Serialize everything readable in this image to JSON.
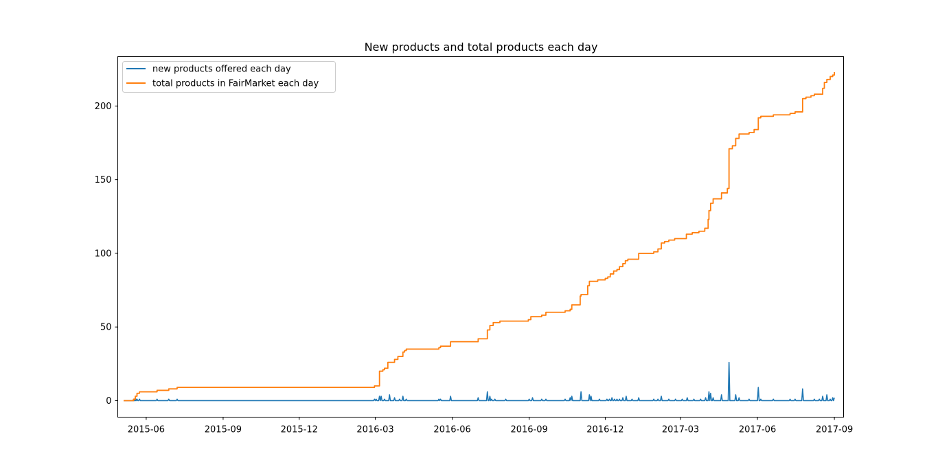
{
  "chart_data": {
    "type": "line",
    "title": "New products and total products each day",
    "xlabel": "",
    "ylabel": "",
    "x_range": [
      "2015-04-28",
      "2017-09-12"
    ],
    "ylim": [
      -11.2,
      233.5
    ],
    "x_ticks": [
      {
        "date": "2015-06-01",
        "label": "2015-06"
      },
      {
        "date": "2015-09-01",
        "label": "2015-09"
      },
      {
        "date": "2015-12-01",
        "label": "2015-12"
      },
      {
        "date": "2016-03-01",
        "label": "2016-03"
      },
      {
        "date": "2016-06-01",
        "label": "2016-06"
      },
      {
        "date": "2016-09-01",
        "label": "2016-09"
      },
      {
        "date": "2016-12-01",
        "label": "2016-12"
      },
      {
        "date": "2017-03-01",
        "label": "2017-03"
      },
      {
        "date": "2017-06-01",
        "label": "2017-06"
      },
      {
        "date": "2017-09-01",
        "label": "2017-09"
      }
    ],
    "y_ticks": [
      0,
      50,
      100,
      150,
      200
    ],
    "legend_position": "top-left",
    "series": [
      {
        "name": "new products offered each day",
        "color": "#1f77b4",
        "render": "spikes",
        "events": [
          [
            "2015-05-17",
            1
          ],
          [
            "2015-05-18",
            1
          ],
          [
            "2015-05-19",
            2
          ],
          [
            "2015-05-21",
            1
          ],
          [
            "2015-05-24",
            1
          ],
          [
            "2015-06-14",
            1
          ],
          [
            "2015-06-28",
            1
          ],
          [
            "2015-07-08",
            1
          ],
          [
            "2016-02-29",
            1
          ],
          [
            "2016-03-02",
            1
          ],
          [
            "2016-03-06",
            3
          ],
          [
            "2016-03-08",
            3
          ],
          [
            "2016-03-12",
            1
          ],
          [
            "2016-03-18",
            4
          ],
          [
            "2016-03-24",
            2
          ],
          [
            "2016-03-30",
            1
          ],
          [
            "2016-04-03",
            3
          ],
          [
            "2016-04-07",
            1
          ],
          [
            "2016-05-16",
            1
          ],
          [
            "2016-05-18",
            1
          ],
          [
            "2016-05-30",
            3
          ],
          [
            "2016-07-02",
            2
          ],
          [
            "2016-07-13",
            6
          ],
          [
            "2016-07-16",
            3
          ],
          [
            "2016-07-18",
            1
          ],
          [
            "2016-07-22",
            1
          ],
          [
            "2016-08-04",
            1
          ],
          [
            "2016-09-01",
            1
          ],
          [
            "2016-09-05",
            2
          ],
          [
            "2016-09-16",
            1
          ],
          [
            "2016-09-21",
            1
          ],
          [
            "2016-10-14",
            1
          ],
          [
            "2016-10-20",
            2
          ],
          [
            "2016-10-22",
            3
          ],
          [
            "2016-11-02",
            6
          ],
          [
            "2016-11-12",
            4
          ],
          [
            "2016-11-14",
            3
          ],
          [
            "2016-11-24",
            1
          ],
          [
            "2016-12-03",
            1
          ],
          [
            "2016-12-06",
            1
          ],
          [
            "2016-12-09",
            2
          ],
          [
            "2016-12-12",
            1
          ],
          [
            "2016-12-15",
            1
          ],
          [
            "2016-12-18",
            1
          ],
          [
            "2016-12-22",
            2
          ],
          [
            "2016-12-26",
            3
          ],
          [
            "2017-01-02",
            1
          ],
          [
            "2017-01-10",
            2
          ],
          [
            "2017-01-28",
            1
          ],
          [
            "2017-02-02",
            1
          ],
          [
            "2017-02-06",
            3
          ],
          [
            "2017-02-15",
            1
          ],
          [
            "2017-02-23",
            1
          ],
          [
            "2017-03-03",
            1
          ],
          [
            "2017-03-09",
            2
          ],
          [
            "2017-03-17",
            1
          ],
          [
            "2017-03-25",
            1
          ],
          [
            "2017-03-31",
            2
          ],
          [
            "2017-04-04",
            6
          ],
          [
            "2017-04-06",
            5
          ],
          [
            "2017-04-09",
            2
          ],
          [
            "2017-04-19",
            4
          ],
          [
            "2017-04-28",
            26
          ],
          [
            "2017-05-06",
            4
          ],
          [
            "2017-05-10",
            2
          ],
          [
            "2017-05-22",
            1
          ],
          [
            "2017-06-02",
            9
          ],
          [
            "2017-06-05",
            1
          ],
          [
            "2017-06-20",
            1
          ],
          [
            "2017-07-10",
            1
          ],
          [
            "2017-07-16",
            1
          ],
          [
            "2017-07-25",
            8
          ],
          [
            "2017-08-08",
            1
          ],
          [
            "2017-08-14",
            1
          ],
          [
            "2017-08-18",
            3
          ],
          [
            "2017-08-23",
            4
          ],
          [
            "2017-08-27",
            1
          ],
          [
            "2017-08-30",
            2
          ]
        ]
      },
      {
        "name": "total products in FairMarket each day",
        "color": "#ff7f0e",
        "render": "step",
        "points": [
          [
            "2015-05-05",
            0
          ],
          [
            "2015-05-17",
            1
          ],
          [
            "2015-05-19",
            3
          ],
          [
            "2015-05-21",
            5
          ],
          [
            "2015-05-24",
            6
          ],
          [
            "2015-06-14",
            7
          ],
          [
            "2015-06-28",
            8
          ],
          [
            "2015-07-08",
            9
          ],
          [
            "2016-02-29",
            10
          ],
          [
            "2016-03-06",
            20
          ],
          [
            "2016-03-10",
            21
          ],
          [
            "2016-03-12",
            22
          ],
          [
            "2016-03-16",
            26
          ],
          [
            "2016-03-24",
            28
          ],
          [
            "2016-03-28",
            30
          ],
          [
            "2016-04-03",
            33
          ],
          [
            "2016-04-05",
            34
          ],
          [
            "2016-04-07",
            35
          ],
          [
            "2016-05-16",
            36
          ],
          [
            "2016-05-18",
            37
          ],
          [
            "2016-05-30",
            40
          ],
          [
            "2016-07-02",
            42
          ],
          [
            "2016-07-13",
            48
          ],
          [
            "2016-07-16",
            51
          ],
          [
            "2016-07-20",
            53
          ],
          [
            "2016-07-28",
            54
          ],
          [
            "2016-08-31",
            55
          ],
          [
            "2016-09-03",
            57
          ],
          [
            "2016-09-16",
            58
          ],
          [
            "2016-09-21",
            60
          ],
          [
            "2016-10-14",
            61
          ],
          [
            "2016-10-20",
            62
          ],
          [
            "2016-10-22",
            65
          ],
          [
            "2016-11-01",
            71
          ],
          [
            "2016-11-02",
            72
          ],
          [
            "2016-11-10",
            78
          ],
          [
            "2016-11-12",
            81
          ],
          [
            "2016-11-22",
            82
          ],
          [
            "2016-12-01",
            83
          ],
          [
            "2016-12-04",
            84
          ],
          [
            "2016-12-07",
            86
          ],
          [
            "2016-12-11",
            88
          ],
          [
            "2016-12-15",
            89
          ],
          [
            "2016-12-18",
            91
          ],
          [
            "2016-12-22",
            93
          ],
          [
            "2016-12-25",
            95
          ],
          [
            "2016-12-28",
            96
          ],
          [
            "2017-01-10",
            100
          ],
          [
            "2017-01-28",
            101
          ],
          [
            "2017-02-02",
            103
          ],
          [
            "2017-02-06",
            107
          ],
          [
            "2017-02-10",
            108
          ],
          [
            "2017-02-15",
            109
          ],
          [
            "2017-02-22",
            110
          ],
          [
            "2017-03-08",
            113
          ],
          [
            "2017-03-15",
            114
          ],
          [
            "2017-03-23",
            115
          ],
          [
            "2017-03-30",
            117
          ],
          [
            "2017-04-03",
            123
          ],
          [
            "2017-04-04",
            129
          ],
          [
            "2017-04-06",
            134
          ],
          [
            "2017-04-09",
            137
          ],
          [
            "2017-04-19",
            141
          ],
          [
            "2017-04-26",
            144
          ],
          [
            "2017-04-28",
            171
          ],
          [
            "2017-05-02",
            173
          ],
          [
            "2017-05-06",
            178
          ],
          [
            "2017-05-10",
            181
          ],
          [
            "2017-05-22",
            182
          ],
          [
            "2017-05-28",
            184
          ],
          [
            "2017-06-02",
            192
          ],
          [
            "2017-06-05",
            193
          ],
          [
            "2017-06-20",
            194
          ],
          [
            "2017-07-10",
            195
          ],
          [
            "2017-07-16",
            196
          ],
          [
            "2017-07-25",
            205
          ],
          [
            "2017-07-29",
            206
          ],
          [
            "2017-08-04",
            207
          ],
          [
            "2017-08-08",
            208
          ],
          [
            "2017-08-18",
            212
          ],
          [
            "2017-08-20",
            216
          ],
          [
            "2017-08-23",
            218
          ],
          [
            "2017-08-27",
            220
          ],
          [
            "2017-08-30",
            221
          ],
          [
            "2017-09-01",
            223
          ]
        ]
      }
    ]
  }
}
